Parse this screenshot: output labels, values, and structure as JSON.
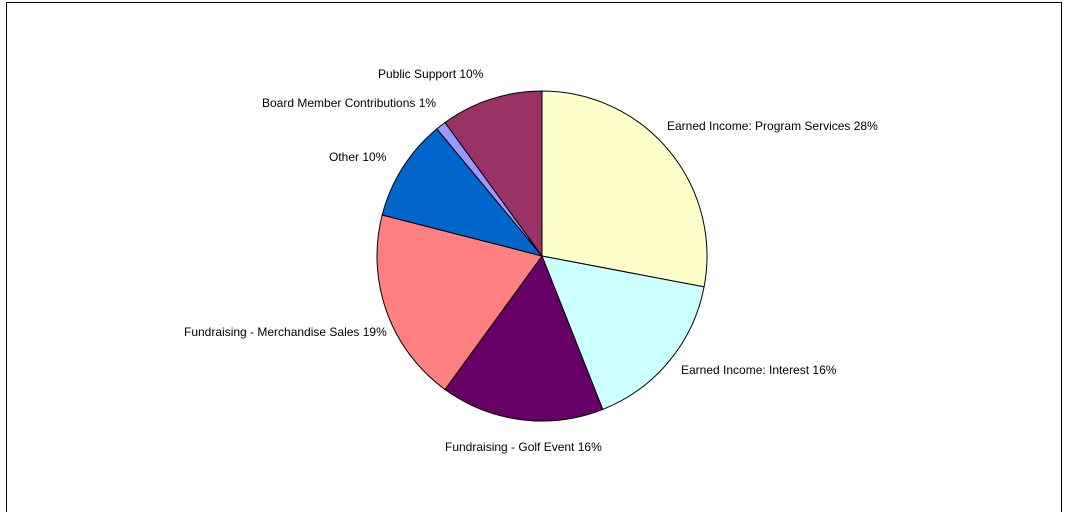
{
  "chart_data": {
    "type": "pie",
    "title": "",
    "slices": [
      {
        "label": "Earned Income: Program Services 28%",
        "name": "Earned Income: Program Services",
        "value": 28,
        "color": "#FFFFCC"
      },
      {
        "label": "Earned Income: Interest 16%",
        "name": "Earned Income: Interest",
        "value": 16,
        "color": "#CCFFFF"
      },
      {
        "label": "Fundraising - Golf Event  16%",
        "name": "Fundraising - Golf Event",
        "value": 16,
        "color": "#660066"
      },
      {
        "label": "Fundraising - Merchandise Sales 19%",
        "name": "Fundraising - Merchandise Sales",
        "value": 19,
        "color": "#FF8080"
      },
      {
        "label": "Other 10%",
        "name": "Other",
        "value": 10,
        "color": "#0066CC"
      },
      {
        "label": "Board Member Contributions 1%",
        "name": "Board Member Contributions",
        "value": 1,
        "color": "#9999FF"
      },
      {
        "label": "Public Support 10%",
        "name": "Public Support",
        "value": 10,
        "color": "#993366"
      }
    ],
    "legend": "none",
    "data_labels": "outside"
  }
}
